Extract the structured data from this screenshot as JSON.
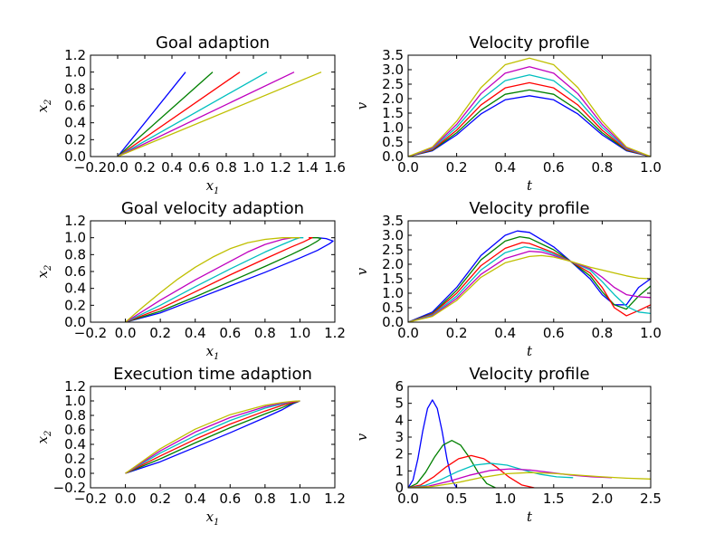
{
  "chart_data": [
    {
      "type": "line",
      "title": "Goal adaption",
      "xlabel": "x1",
      "ylabel": "x2",
      "xlim": [
        -0.2,
        1.6
      ],
      "ylim": [
        0.0,
        1.2
      ],
      "xticks": [
        "−0.2",
        "0.0",
        "0.2",
        "0.4",
        "0.6",
        "0.8",
        "1.0",
        "1.2",
        "1.4",
        "1.6"
      ],
      "yticks": [
        "0.0",
        "0.2",
        "0.4",
        "0.6",
        "0.8",
        "1.0",
        "1.2"
      ],
      "series": [
        {
          "color": "#0000ff",
          "x": [
            0.0,
            0.5
          ],
          "y": [
            0.0,
            1.0
          ]
        },
        {
          "color": "#008000",
          "x": [
            0.0,
            0.7
          ],
          "y": [
            0.0,
            1.0
          ]
        },
        {
          "color": "#ff0000",
          "x": [
            0.0,
            0.9
          ],
          "y": [
            0.0,
            1.0
          ]
        },
        {
          "color": "#00bfbf",
          "x": [
            0.0,
            1.1
          ],
          "y": [
            0.0,
            1.0
          ]
        },
        {
          "color": "#bf00bf",
          "x": [
            0.0,
            1.3
          ],
          "y": [
            0.0,
            1.0
          ]
        },
        {
          "color": "#bfbf00",
          "x": [
            0.0,
            1.5
          ],
          "y": [
            0.0,
            1.0
          ]
        }
      ]
    },
    {
      "type": "line",
      "title": "Velocity profile",
      "xlabel": "t",
      "ylabel": "v",
      "xlim": [
        0.0,
        1.0
      ],
      "ylim": [
        0.0,
        3.5
      ],
      "xticks": [
        "0.0",
        "0.2",
        "0.4",
        "0.6",
        "0.8",
        "1.0"
      ],
      "yticks": [
        "0.0",
        "0.5",
        "1.0",
        "1.5",
        "2.0",
        "2.5",
        "3.0",
        "3.5"
      ],
      "series": [
        {
          "color": "#0000ff",
          "x": [
            0,
            0.1,
            0.2,
            0.3,
            0.4,
            0.5,
            0.6,
            0.7,
            0.8,
            0.9,
            1.0
          ],
          "y": [
            0,
            0.2,
            0.75,
            1.47,
            1.96,
            2.1,
            1.96,
            1.47,
            0.75,
            0.2,
            0
          ]
        },
        {
          "color": "#008000",
          "x": [
            0,
            0.1,
            0.2,
            0.3,
            0.4,
            0.5,
            0.6,
            0.7,
            0.8,
            0.9,
            1.0
          ],
          "y": [
            0,
            0.22,
            0.82,
            1.6,
            2.15,
            2.3,
            2.15,
            1.6,
            0.82,
            0.22,
            0
          ]
        },
        {
          "color": "#ff0000",
          "x": [
            0,
            0.1,
            0.2,
            0.3,
            0.4,
            0.5,
            0.6,
            0.7,
            0.8,
            0.9,
            1.0
          ],
          "y": [
            0,
            0.24,
            0.91,
            1.78,
            2.37,
            2.55,
            2.37,
            1.78,
            0.91,
            0.24,
            0
          ]
        },
        {
          "color": "#00bfbf",
          "x": [
            0,
            0.1,
            0.2,
            0.3,
            0.4,
            0.5,
            0.6,
            0.7,
            0.8,
            0.9,
            1.0
          ],
          "y": [
            0,
            0.27,
            1.01,
            1.97,
            2.62,
            2.82,
            2.62,
            1.97,
            1.01,
            0.27,
            0
          ]
        },
        {
          "color": "#bf00bf",
          "x": [
            0,
            0.1,
            0.2,
            0.3,
            0.4,
            0.5,
            0.6,
            0.7,
            0.8,
            0.9,
            1.0
          ],
          "y": [
            0,
            0.3,
            1.11,
            2.17,
            2.88,
            3.1,
            2.88,
            2.17,
            1.11,
            0.3,
            0
          ]
        },
        {
          "color": "#bfbf00",
          "x": [
            0,
            0.1,
            0.2,
            0.3,
            0.4,
            0.5,
            0.6,
            0.7,
            0.8,
            0.9,
            1.0
          ],
          "y": [
            0,
            0.33,
            1.22,
            2.38,
            3.17,
            3.4,
            3.17,
            2.38,
            1.22,
            0.33,
            0
          ]
        }
      ]
    },
    {
      "type": "line",
      "title": "Goal velocity adaption",
      "xlabel": "x1",
      "ylabel": "x2",
      "xlim": [
        -0.2,
        1.2
      ],
      "ylim": [
        0.0,
        1.2
      ],
      "xticks": [
        "−0.2",
        "0.0",
        "0.2",
        "0.4",
        "0.6",
        "0.8",
        "1.0",
        "1.2"
      ],
      "yticks": [
        "0.0",
        "0.2",
        "0.4",
        "0.6",
        "0.8",
        "1.0",
        "1.2"
      ],
      "series": [
        {
          "color": "#0000ff",
          "x": [
            0,
            0.2,
            0.4,
            0.6,
            0.8,
            1.0,
            1.1,
            1.17,
            1.19,
            1.15,
            1.1
          ],
          "y": [
            0,
            0.11,
            0.27,
            0.43,
            0.59,
            0.76,
            0.85,
            0.93,
            0.96,
            0.99,
            1.0
          ]
        },
        {
          "color": "#008000",
          "x": [
            0,
            0.2,
            0.4,
            0.6,
            0.8,
            0.95,
            1.05,
            1.1,
            1.12,
            1.1,
            1.07
          ],
          "y": [
            0,
            0.13,
            0.3,
            0.48,
            0.66,
            0.8,
            0.9,
            0.96,
            0.99,
            1.0,
            1.0
          ]
        },
        {
          "color": "#ff0000",
          "x": [
            0,
            0.2,
            0.4,
            0.6,
            0.8,
            0.95,
            1.02,
            1.06,
            1.07,
            1.05
          ],
          "y": [
            0,
            0.16,
            0.36,
            0.56,
            0.75,
            0.89,
            0.95,
            0.99,
            1.0,
            1.0
          ]
        },
        {
          "color": "#00bfbf",
          "x": [
            0,
            0.2,
            0.4,
            0.6,
            0.8,
            0.9,
            0.97,
            1.0,
            1.02
          ],
          "y": [
            0,
            0.2,
            0.42,
            0.63,
            0.83,
            0.92,
            0.98,
            1.0,
            1.0
          ]
        },
        {
          "color": "#bf00bf",
          "x": [
            0,
            0.2,
            0.4,
            0.6,
            0.7,
            0.8,
            0.9,
            0.96,
            1.0
          ],
          "y": [
            0,
            0.26,
            0.5,
            0.72,
            0.83,
            0.92,
            0.98,
            1.0,
            1.0
          ]
        },
        {
          "color": "#bfbf00",
          "x": [
            0,
            0.1,
            0.2,
            0.3,
            0.4,
            0.5,
            0.6,
            0.7,
            0.8,
            0.9,
            1.0
          ],
          "y": [
            0,
            0.18,
            0.35,
            0.51,
            0.65,
            0.77,
            0.87,
            0.94,
            0.98,
            1.0,
            1.0
          ]
        }
      ]
    },
    {
      "type": "line",
      "title": "Velocity profile",
      "xlabel": "t",
      "ylabel": "v",
      "xlim": [
        0.0,
        1.0
      ],
      "ylim": [
        0.0,
        3.5
      ],
      "xticks": [
        "0.0",
        "0.2",
        "0.4",
        "0.6",
        "0.8",
        "1.0"
      ],
      "yticks": [
        "0.0",
        "0.5",
        "1.0",
        "1.5",
        "2.0",
        "2.5",
        "3.0",
        "3.5"
      ],
      "series": [
        {
          "color": "#0000ff",
          "x": [
            0,
            0.1,
            0.2,
            0.3,
            0.4,
            0.45,
            0.5,
            0.6,
            0.67,
            0.75,
            0.8,
            0.85,
            0.9,
            0.95,
            1.0
          ],
          "y": [
            0,
            0.35,
            1.2,
            2.3,
            3.0,
            3.15,
            3.1,
            2.6,
            2.1,
            1.5,
            0.95,
            0.6,
            0.6,
            1.2,
            1.5
          ]
        },
        {
          "color": "#008000",
          "x": [
            0,
            0.1,
            0.2,
            0.3,
            0.4,
            0.46,
            0.5,
            0.6,
            0.67,
            0.75,
            0.8,
            0.85,
            0.9,
            0.95,
            1.0
          ],
          "y": [
            0,
            0.3,
            1.1,
            2.15,
            2.8,
            2.95,
            2.9,
            2.5,
            2.1,
            1.6,
            1.05,
            0.6,
            0.45,
            0.9,
            1.25
          ]
        },
        {
          "color": "#ff0000",
          "x": [
            0,
            0.1,
            0.2,
            0.3,
            0.4,
            0.47,
            0.5,
            0.6,
            0.67,
            0.75,
            0.8,
            0.85,
            0.9,
            0.95,
            1.0
          ],
          "y": [
            0,
            0.28,
            1.0,
            1.95,
            2.55,
            2.75,
            2.72,
            2.4,
            2.1,
            1.7,
            1.2,
            0.5,
            0.22,
            0.4,
            0.6
          ]
        },
        {
          "color": "#00bfbf",
          "x": [
            0,
            0.1,
            0.2,
            0.3,
            0.4,
            0.48,
            0.55,
            0.6,
            0.67,
            0.75,
            0.8,
            0.85,
            0.9,
            0.95,
            1.0
          ],
          "y": [
            0,
            0.25,
            0.9,
            1.8,
            2.4,
            2.6,
            2.5,
            2.35,
            2.1,
            1.8,
            1.4,
            0.95,
            0.55,
            0.35,
            0.3
          ]
        },
        {
          "color": "#bf00bf",
          "x": [
            0,
            0.1,
            0.2,
            0.3,
            0.4,
            0.5,
            0.55,
            0.6,
            0.67,
            0.75,
            0.8,
            0.85,
            0.9,
            0.95,
            1.0
          ],
          "y": [
            0,
            0.22,
            0.82,
            1.65,
            2.2,
            2.45,
            2.42,
            2.3,
            2.1,
            1.85,
            1.55,
            1.2,
            0.95,
            0.88,
            0.85
          ]
        },
        {
          "color": "#bfbf00",
          "x": [
            0,
            0.1,
            0.2,
            0.3,
            0.4,
            0.5,
            0.55,
            0.6,
            0.67,
            0.75,
            0.8,
            0.85,
            0.9,
            0.95,
            1.0
          ],
          "y": [
            0,
            0.2,
            0.75,
            1.55,
            2.05,
            2.27,
            2.3,
            2.25,
            2.1,
            1.9,
            1.8,
            1.7,
            1.6,
            1.52,
            1.5
          ]
        }
      ]
    },
    {
      "type": "line",
      "title": "Execution time adaption",
      "xlabel": "x1",
      "ylabel": "x2",
      "xlim": [
        -0.2,
        1.2
      ],
      "ylim": [
        -0.2,
        1.2
      ],
      "xticks": [
        "−0.2",
        "0.0",
        "0.2",
        "0.4",
        "0.6",
        "0.8",
        "1.0",
        "1.2"
      ],
      "yticks": [
        "−0.2",
        "0.0",
        "0.2",
        "0.4",
        "0.6",
        "0.8",
        "1.0",
        "1.2"
      ],
      "series": [
        {
          "color": "#0000ff",
          "x": [
            0,
            0.2,
            0.4,
            0.6,
            0.8,
            0.9,
            0.96,
            1.0
          ],
          "y": [
            0,
            0.16,
            0.36,
            0.56,
            0.77,
            0.88,
            0.96,
            1.0
          ]
        },
        {
          "color": "#008000",
          "x": [
            0,
            0.2,
            0.4,
            0.6,
            0.8,
            0.9,
            0.96,
            1.0
          ],
          "y": [
            0,
            0.2,
            0.42,
            0.63,
            0.82,
            0.91,
            0.97,
            1.0
          ]
        },
        {
          "color": "#ff0000",
          "x": [
            0,
            0.2,
            0.4,
            0.6,
            0.8,
            0.9,
            0.96,
            1.0
          ],
          "y": [
            0,
            0.24,
            0.47,
            0.68,
            0.86,
            0.94,
            0.98,
            1.0
          ]
        },
        {
          "color": "#00bfbf",
          "x": [
            0,
            0.2,
            0.4,
            0.6,
            0.8,
            0.9,
            0.96,
            1.0
          ],
          "y": [
            0,
            0.28,
            0.52,
            0.73,
            0.9,
            0.96,
            0.99,
            1.0
          ]
        },
        {
          "color": "#bf00bf",
          "x": [
            0,
            0.2,
            0.4,
            0.6,
            0.8,
            0.9,
            0.96,
            1.0
          ],
          "y": [
            0,
            0.31,
            0.57,
            0.77,
            0.92,
            0.97,
            0.99,
            1.0
          ]
        },
        {
          "color": "#bfbf00",
          "x": [
            0,
            0.2,
            0.4,
            0.6,
            0.8,
            0.9,
            0.96,
            1.0
          ],
          "y": [
            0,
            0.34,
            0.61,
            0.81,
            0.94,
            0.98,
            0.995,
            1.0
          ]
        }
      ]
    },
    {
      "type": "line",
      "title": "Velocity profile",
      "xlabel": "t",
      "ylabel": "v",
      "xlim": [
        0.0,
        2.5
      ],
      "ylim": [
        0.0,
        6.0
      ],
      "xticks": [
        "0.0",
        "0.5",
        "1.0",
        "1.5",
        "2.0",
        "2.5"
      ],
      "yticks": [
        "0",
        "1",
        "2",
        "3",
        "4",
        "5",
        "6"
      ],
      "series": [
        {
          "color": "#0000ff",
          "x": [
            0,
            0.05,
            0.1,
            0.15,
            0.2,
            0.25,
            0.3,
            0.35,
            0.4,
            0.45,
            0.5
          ],
          "y": [
            0,
            0.46,
            1.71,
            3.35,
            4.7,
            5.2,
            4.7,
            3.35,
            1.71,
            0.46,
            0
          ]
        },
        {
          "color": "#008000",
          "x": [
            0,
            0.09,
            0.18,
            0.27,
            0.36,
            0.45,
            0.54,
            0.63,
            0.72,
            0.81,
            0.9
          ],
          "y": [
            0,
            0.25,
            0.92,
            1.8,
            2.53,
            2.8,
            2.53,
            1.8,
            0.92,
            0.25,
            0
          ]
        },
        {
          "color": "#ff0000",
          "x": [
            0,
            0.13,
            0.26,
            0.39,
            0.52,
            0.65,
            0.78,
            0.91,
            1.04,
            1.17,
            1.3
          ],
          "y": [
            0,
            0.17,
            0.63,
            1.23,
            1.72,
            1.91,
            1.72,
            1.23,
            0.63,
            0.17,
            0
          ]
        },
        {
          "color": "#00bfbf",
          "x": [
            0,
            0.17,
            0.34,
            0.51,
            0.68,
            0.85,
            1.02,
            1.19,
            1.36,
            1.53,
            1.7
          ],
          "y": [
            0,
            0.13,
            0.49,
            0.96,
            1.34,
            1.45,
            1.34,
            1.05,
            0.8,
            0.65,
            0.6
          ]
        },
        {
          "color": "#bf00bf",
          "x": [
            0,
            0.21,
            0.42,
            0.63,
            0.84,
            1.05,
            1.26,
            1.47,
            1.68,
            1.89,
            2.1
          ],
          "y": [
            0,
            0.1,
            0.38,
            0.74,
            1.02,
            1.12,
            1.05,
            0.9,
            0.75,
            0.65,
            0.6
          ]
        },
        {
          "color": "#bfbf00",
          "x": [
            0,
            0.25,
            0.5,
            0.75,
            1.0,
            1.25,
            1.5,
            1.75,
            2.0,
            2.25,
            2.5
          ],
          "y": [
            0,
            0.08,
            0.3,
            0.6,
            0.83,
            0.9,
            0.85,
            0.75,
            0.65,
            0.57,
            0.52
          ]
        }
      ]
    }
  ]
}
